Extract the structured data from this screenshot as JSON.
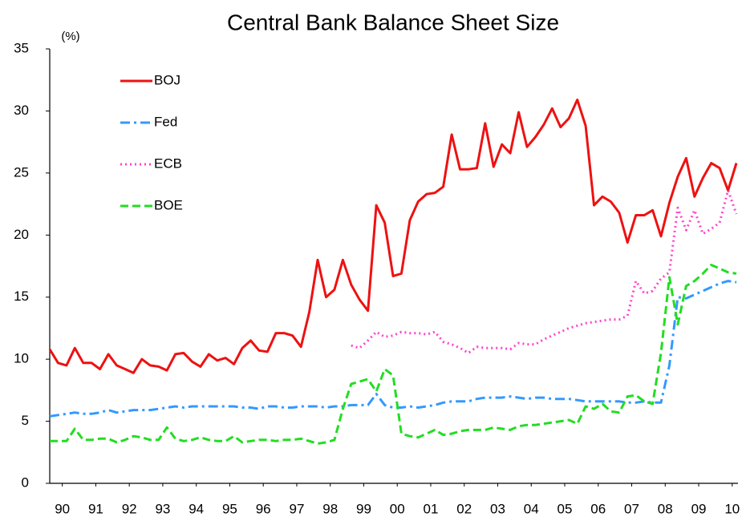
{
  "chart_data": {
    "type": "line",
    "title": "Central Bank Balance Sheet Size",
    "y_unit": "(%)",
    "x": [
      1990,
      1990.25,
      1990.5,
      1990.75,
      1991,
      1991.25,
      1991.5,
      1991.75,
      1992,
      1992.25,
      1992.5,
      1992.75,
      1993,
      1993.25,
      1993.5,
      1993.75,
      1994,
      1994.25,
      1994.5,
      1994.75,
      1995,
      1995.25,
      1995.5,
      1995.75,
      1996,
      1996.25,
      1996.5,
      1996.75,
      1997,
      1997.25,
      1997.5,
      1997.75,
      1998,
      1998.25,
      1998.5,
      1998.75,
      1999,
      1999.25,
      1999.5,
      1999.75,
      2000,
      2000.25,
      2000.5,
      2000.75,
      2001,
      2001.25,
      2001.5,
      2001.75,
      2002,
      2002.25,
      2002.5,
      2002.75,
      2003,
      2003.25,
      2003.5,
      2003.75,
      2004,
      2004.25,
      2004.5,
      2004.75,
      2005,
      2005.25,
      2005.5,
      2005.75,
      2006,
      2006.25,
      2006.5,
      2006.75,
      2007,
      2007.25,
      2007.5,
      2007.75,
      2008,
      2008.25,
      2008.5,
      2008.75,
      2009,
      2009.25,
      2009.5,
      2009.75,
      2010,
      2010.25,
      2010.5
    ],
    "series": [
      {
        "name": "BOJ",
        "color": "#ee1111",
        "dash": "none",
        "values": [
          10.8,
          9.7,
          9.5,
          10.9,
          9.7,
          9.7,
          9.2,
          10.4,
          9.5,
          9.2,
          8.9,
          10.0,
          9.5,
          9.4,
          9.1,
          10.4,
          10.5,
          9.8,
          9.4,
          10.4,
          9.9,
          10.1,
          9.6,
          10.9,
          11.5,
          10.7,
          10.6,
          12.1,
          12.1,
          11.9,
          11.0,
          13.8,
          18.0,
          15.0,
          15.6,
          18.0,
          16.0,
          14.8,
          13.9,
          22.4,
          21.0,
          16.7,
          16.9,
          21.2,
          22.7,
          23.3,
          23.4,
          23.9,
          28.1,
          25.3,
          25.3,
          25.4,
          29.0,
          25.5,
          27.3,
          26.6,
          29.9,
          27.1,
          27.9,
          28.9,
          30.2,
          28.7,
          29.4,
          30.9,
          28.8,
          22.4,
          23.1,
          22.7,
          21.8,
          19.4,
          21.6,
          21.6,
          22.0,
          19.9,
          22.6,
          24.7,
          26.2,
          23.1,
          24.6,
          25.8,
          25.4,
          23.6,
          25.8
        ]
      },
      {
        "name": "Fed",
        "color": "#3399ff",
        "dash": "12 5 3 5",
        "values": [
          5.4,
          5.5,
          5.6,
          5.7,
          5.6,
          5.6,
          5.7,
          5.9,
          5.7,
          5.8,
          5.9,
          5.9,
          5.9,
          6.0,
          6.1,
          6.2,
          6.1,
          6.2,
          6.2,
          6.2,
          6.2,
          6.2,
          6.2,
          6.1,
          6.1,
          6.0,
          6.2,
          6.2,
          6.1,
          6.1,
          6.2,
          6.2,
          6.2,
          6.1,
          6.2,
          6.2,
          6.3,
          6.3,
          6.3,
          7.2,
          6.3,
          6.1,
          6.1,
          6.2,
          6.1,
          6.2,
          6.3,
          6.5,
          6.6,
          6.6,
          6.6,
          6.8,
          6.9,
          6.9,
          6.9,
          7.0,
          6.9,
          6.8,
          6.9,
          6.9,
          6.8,
          6.8,
          6.8,
          6.7,
          6.6,
          6.6,
          6.6,
          6.6,
          6.6,
          6.5,
          6.5,
          6.6,
          6.5,
          6.5,
          9.5,
          15.0,
          14.9,
          15.2,
          15.5,
          15.8,
          16.1,
          16.3,
          16.2
        ]
      },
      {
        "name": "ECB",
        "color": "#ff44cc",
        "dash": "2 4",
        "values": [
          null,
          null,
          null,
          null,
          null,
          null,
          null,
          null,
          null,
          null,
          null,
          null,
          null,
          null,
          null,
          null,
          null,
          null,
          null,
          null,
          null,
          null,
          null,
          null,
          null,
          null,
          null,
          null,
          null,
          null,
          null,
          null,
          null,
          null,
          null,
          null,
          11.1,
          10.9,
          11.5,
          12.2,
          11.8,
          11.9,
          12.2,
          12.1,
          12.1,
          12.0,
          12.2,
          11.4,
          11.2,
          10.9,
          10.5,
          11.0,
          10.9,
          10.9,
          10.9,
          10.8,
          11.3,
          11.2,
          11.2,
          11.6,
          11.9,
          12.2,
          12.5,
          12.7,
          12.9,
          13.0,
          13.1,
          13.2,
          13.2,
          13.5,
          16.3,
          15.3,
          15.5,
          16.5,
          17.0,
          22.2,
          20.4,
          22.0,
          20.1,
          20.5,
          21.0,
          23.6,
          21.7
        ]
      },
      {
        "name": "BOE",
        "color": "#22dd22",
        "dash": "10 5",
        "values": [
          3.4,
          3.4,
          3.4,
          4.4,
          3.5,
          3.5,
          3.6,
          3.6,
          3.3,
          3.5,
          3.8,
          3.7,
          3.5,
          3.5,
          4.5,
          3.6,
          3.4,
          3.5,
          3.7,
          3.5,
          3.4,
          3.4,
          3.8,
          3.3,
          3.4,
          3.5,
          3.5,
          3.4,
          3.5,
          3.5,
          3.6,
          3.4,
          3.2,
          3.3,
          3.5,
          6.0,
          8.0,
          8.2,
          8.4,
          7.4,
          9.2,
          8.7,
          4.0,
          3.8,
          3.7,
          4.0,
          4.3,
          3.9,
          4.0,
          4.2,
          4.3,
          4.3,
          4.3,
          4.5,
          4.4,
          4.3,
          4.6,
          4.7,
          4.7,
          4.8,
          4.9,
          5.0,
          5.1,
          4.8,
          6.2,
          6.0,
          6.4,
          5.8,
          5.7,
          7.0,
          7.1,
          6.6,
          6.4,
          10.5,
          16.6,
          12.8,
          15.9,
          16.3,
          16.9,
          17.6,
          17.3,
          17.0,
          16.9
        ]
      }
    ],
    "xlim": [
      1990,
      2010.5
    ],
    "xticks": [
      {
        "value": 1990.375,
        "label": "90"
      },
      {
        "value": 1991.375,
        "label": "91"
      },
      {
        "value": 1992.375,
        "label": "92"
      },
      {
        "value": 1993.375,
        "label": "93"
      },
      {
        "value": 1994.375,
        "label": "94"
      },
      {
        "value": 1995.375,
        "label": "95"
      },
      {
        "value": 1996.375,
        "label": "96"
      },
      {
        "value": 1997.375,
        "label": "97"
      },
      {
        "value": 1998.375,
        "label": "98"
      },
      {
        "value": 1999.375,
        "label": "99"
      },
      {
        "value": 2000.375,
        "label": "00"
      },
      {
        "value": 2001.375,
        "label": "01"
      },
      {
        "value": 2002.375,
        "label": "02"
      },
      {
        "value": 2003.375,
        "label": "03"
      },
      {
        "value": 2004.375,
        "label": "04"
      },
      {
        "value": 2005.375,
        "label": "05"
      },
      {
        "value": 2006.375,
        "label": "06"
      },
      {
        "value": 2007.375,
        "label": "07"
      },
      {
        "value": 2008.375,
        "label": "08"
      },
      {
        "value": 2009.375,
        "label": "09"
      },
      {
        "value": 2010.375,
        "label": "10"
      }
    ],
    "ylim": [
      0,
      35
    ],
    "yticks": [
      0,
      5,
      10,
      15,
      20,
      25,
      30,
      35
    ],
    "grid": false,
    "legend": "top-left"
  }
}
